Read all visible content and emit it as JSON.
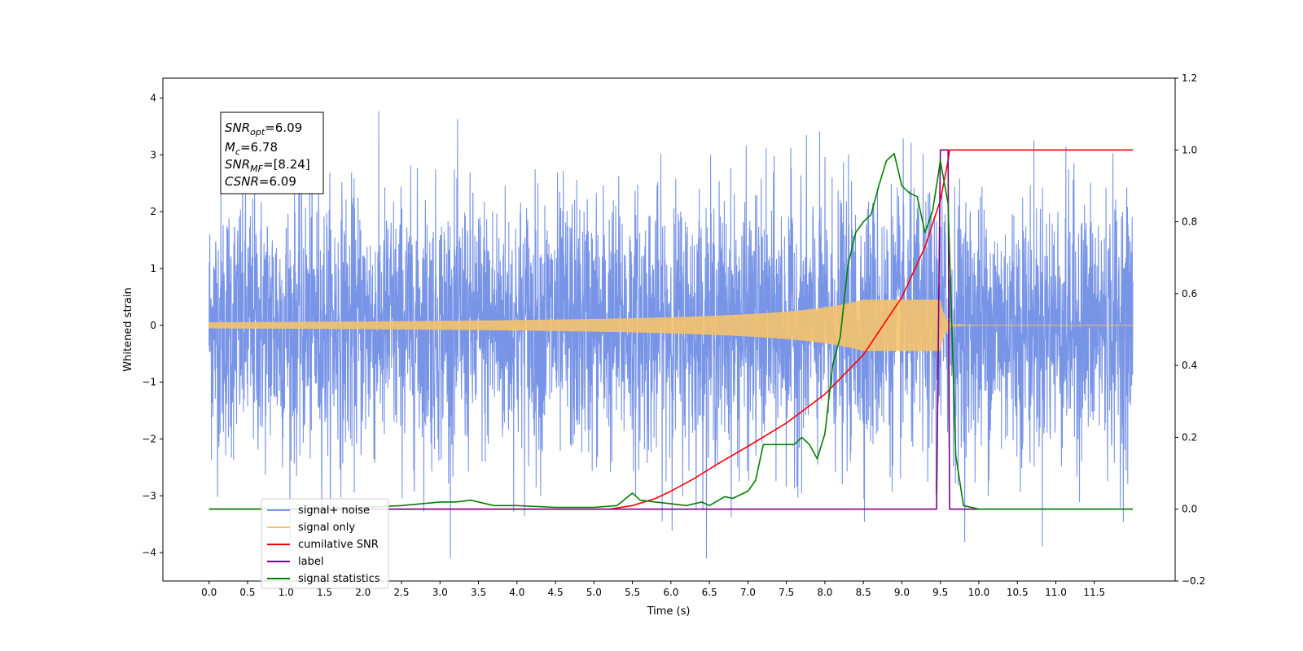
{
  "chart_data": {
    "type": "line",
    "xlabel": "Time (s)",
    "ylabel": "Whitened strain",
    "xlim": [
      -0.6,
      12.55
    ],
    "ylim": [
      -4.5,
      4.35
    ],
    "y2lim": [
      -0.2,
      1.2
    ],
    "x_ticks": [
      "0.0",
      "0.5",
      "1.0",
      "1.5",
      "2.0",
      "2.5",
      "3.0",
      "3.5",
      "4.0",
      "4.5",
      "5.0",
      "5.5",
      "6.0",
      "6.5",
      "7.0",
      "7.5",
      "8.0",
      "8.5",
      "9.0",
      "9.5",
      "10.0",
      "10.5",
      "11.0",
      "11.5"
    ],
    "y_ticks": [
      4,
      3,
      2,
      1,
      0,
      -1,
      -2,
      -3,
      -4
    ],
    "y2_ticks": [
      "1.2",
      "1.0",
      "0.8",
      "0.6",
      "0.4",
      "0.2",
      "0.0",
      "−0.2"
    ],
    "annotation": {
      "snr_opt": "6.09",
      "mc": "6.78",
      "snr_mf": "[8.24]",
      "csnr": "6.09"
    },
    "legend_position": "lower-left",
    "series": [
      {
        "name": "signal+ noise",
        "color": "#7894e6",
        "axis": "left",
        "kind": "noise",
        "x_range": [
          0,
          12.0
        ],
        "std": 1.0,
        "approx_extremes": [
          -4.1,
          3.95
        ]
      },
      {
        "name": "signal only",
        "color": "#f5c26b",
        "axis": "left",
        "kind": "chirp",
        "x_range": [
          0,
          12.0
        ],
        "merger_x": 9.5,
        "peak_amplitude": 0.45
      },
      {
        "name": "cumilative SNR",
        "color": "#ff0000",
        "axis": "right",
        "x": [
          0,
          5.2,
          5.5,
          5.8,
          6.0,
          6.3,
          6.6,
          7.0,
          7.5,
          8.0,
          8.5,
          9.0,
          9.3,
          9.5,
          9.6,
          9.62,
          12.0
        ],
        "y": [
          0,
          0,
          0.01,
          0.03,
          0.05,
          0.085,
          0.125,
          0.175,
          0.24,
          0.32,
          0.43,
          0.59,
          0.73,
          0.86,
          0.97,
          1.0,
          1.0
        ]
      },
      {
        "name": "label",
        "color": "#800080",
        "axis": "right",
        "x": [
          0,
          9.45,
          9.5,
          9.6,
          9.62,
          12.0
        ],
        "y": [
          0,
          0,
          1.0,
          1.0,
          0,
          0
        ]
      },
      {
        "name": "signal statistics",
        "color": "#008000",
        "axis": "right",
        "x": [
          0,
          1.0,
          2.0,
          2.5,
          3.0,
          3.2,
          3.4,
          3.7,
          4.0,
          4.5,
          5.0,
          5.3,
          5.5,
          5.6,
          5.8,
          6.0,
          6.2,
          6.4,
          6.5,
          6.7,
          6.8,
          7.0,
          7.1,
          7.2,
          7.4,
          7.6,
          7.7,
          7.8,
          7.9,
          8.0,
          8.1,
          8.2,
          8.3,
          8.4,
          8.5,
          8.6,
          8.7,
          8.8,
          8.9,
          9.0,
          9.1,
          9.2,
          9.3,
          9.4,
          9.5,
          9.6,
          9.7,
          9.8,
          10.0,
          11.0,
          11.5,
          12.0
        ],
        "y": [
          0,
          0,
          0.005,
          0.01,
          0.02,
          0.02,
          0.025,
          0.01,
          0.01,
          0.005,
          0.005,
          0.01,
          0.045,
          0.025,
          0.02,
          0.015,
          0.01,
          0.02,
          0.01,
          0.035,
          0.03,
          0.05,
          0.08,
          0.18,
          0.18,
          0.18,
          0.2,
          0.18,
          0.14,
          0.21,
          0.4,
          0.48,
          0.68,
          0.77,
          0.8,
          0.82,
          0.9,
          0.97,
          0.99,
          0.9,
          0.88,
          0.87,
          0.77,
          0.83,
          0.97,
          0.85,
          0.15,
          0.01,
          0.0,
          0.0,
          0.0,
          0.0
        ]
      }
    ]
  }
}
